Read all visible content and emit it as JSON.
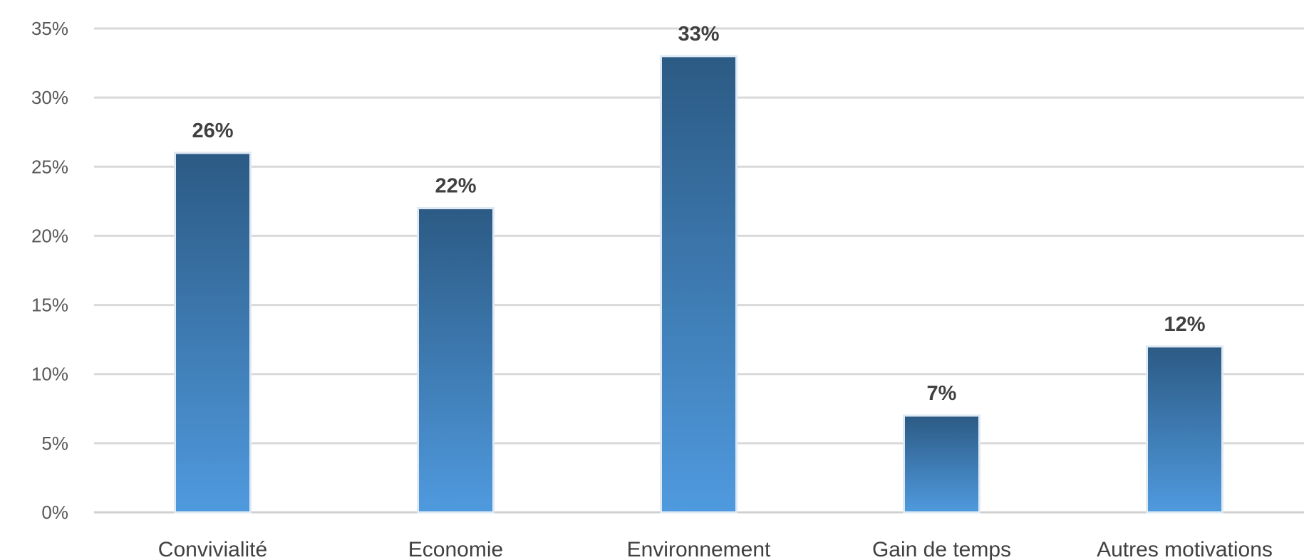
{
  "chart_data": {
    "type": "bar",
    "categories": [
      "Convivialité",
      "Economie",
      "Environnement",
      "Gain de temps",
      "Autres motivations"
    ],
    "values": [
      26,
      22,
      33,
      7,
      12
    ],
    "data_labels": [
      "26%",
      "22%",
      "33%",
      "7%",
      "12%"
    ],
    "ylim": [
      0,
      35
    ],
    "yticks": [
      0,
      5,
      10,
      15,
      20,
      25,
      30,
      35
    ],
    "ytick_labels": [
      "0%",
      "5%",
      "10%",
      "15%",
      "20%",
      "25%",
      "30%",
      "35%"
    ],
    "title": "",
    "xlabel": "",
    "ylabel": "",
    "grid": true,
    "legend": "none",
    "colors": {
      "bar_top": "#2c5a84",
      "bar_bottom": "#4f9ade",
      "grid": "#d9d9d9"
    }
  }
}
